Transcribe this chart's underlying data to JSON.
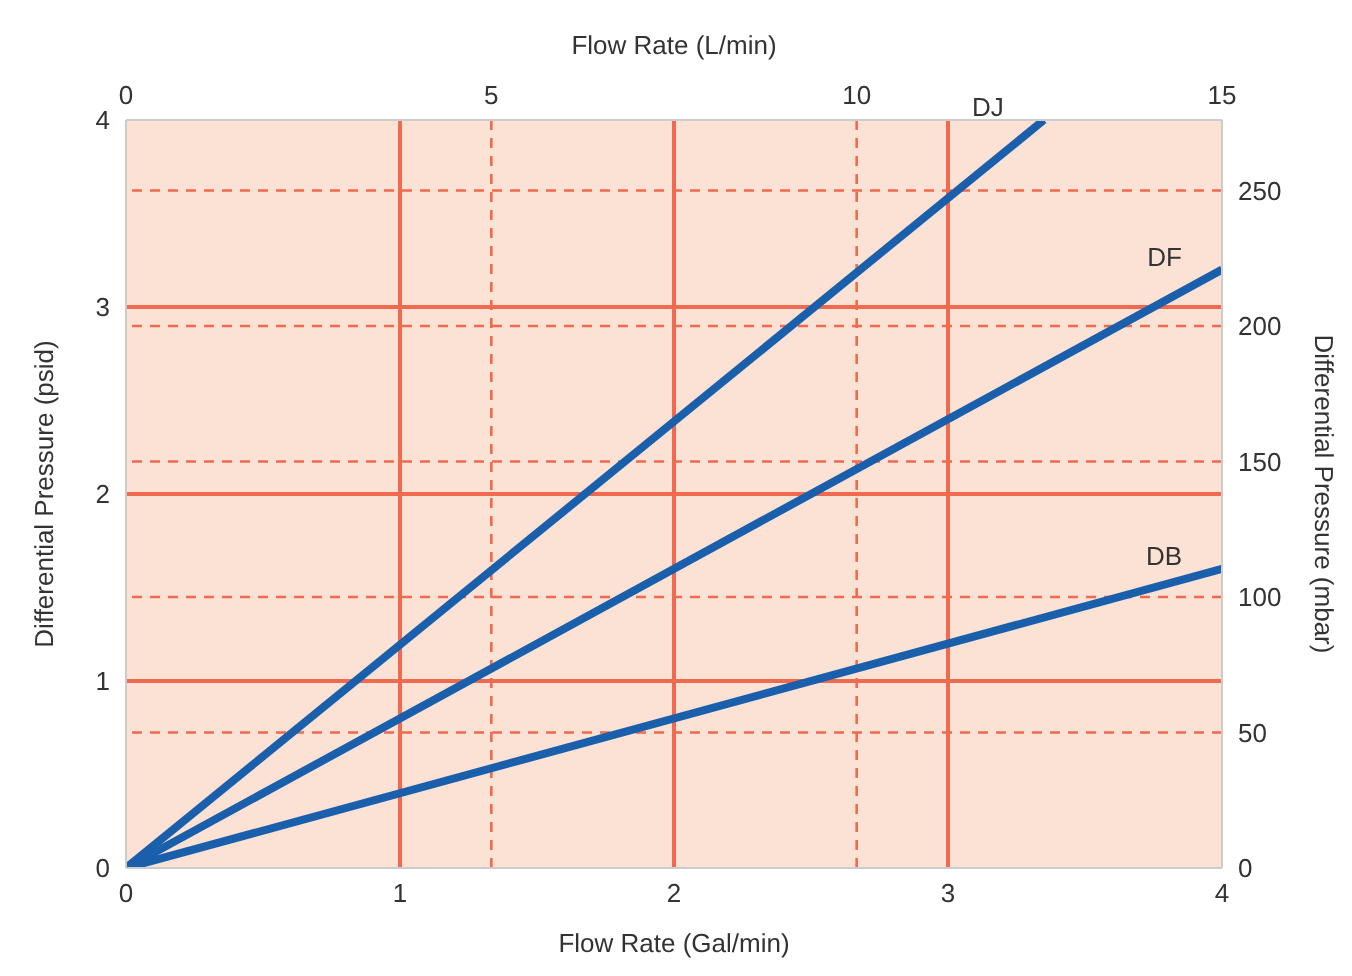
{
  "chart_data": {
    "type": "line",
    "xlabel": "Flow Rate (Gal/min)",
    "ylabel": "Differential Pressure (psid)",
    "y2label": "Differential Pressure (mbar)",
    "x2label": "Flow Rate (L/min)",
    "xlim": [
      0,
      4
    ],
    "xticks": [
      0,
      1,
      2,
      3,
      4
    ],
    "ylim": [
      0,
      4
    ],
    "yticks": [
      0,
      1,
      2,
      3,
      4
    ],
    "x2lim": [
      0,
      15
    ],
    "x2ticks": [
      0,
      5,
      10,
      15
    ],
    "y2lim": [
      0,
      276
    ],
    "y2ticks": [
      0,
      50,
      100,
      150,
      200,
      250
    ],
    "grid": true,
    "marker": "none",
    "line_style": "solid",
    "series": [
      {
        "name": "DJ",
        "color": "#1a5fab",
        "x": [
          0,
          3.35
        ],
        "values": [
          0,
          4
        ]
      },
      {
        "name": "DF",
        "color": "#1a5fab",
        "x": [
          0,
          4
        ],
        "values": [
          0,
          3.2
        ]
      },
      {
        "name": "DB",
        "color": "#1a5fab",
        "x": [
          0,
          4
        ],
        "values": [
          0,
          1.6
        ]
      }
    ]
  }
}
